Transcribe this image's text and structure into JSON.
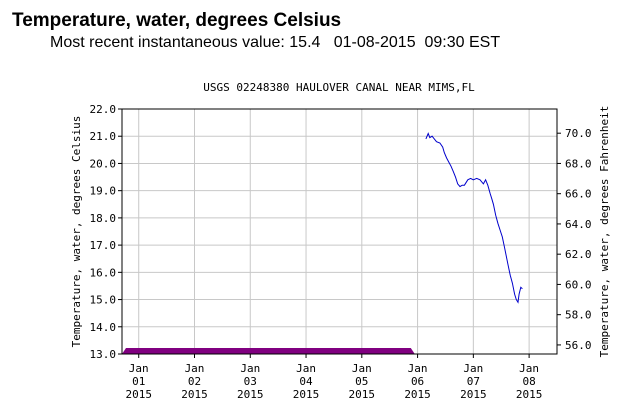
{
  "header": {
    "title": "Temperature, water, degrees Celsius",
    "recent_label": "Most recent instantaneous value:",
    "recent_value": "15.4",
    "recent_date": "01-08-2015",
    "recent_time": "09:30 EST"
  },
  "chart_data": {
    "type": "line",
    "title": "USGS 02248380 HAULOVER CANAL NEAR MIMS,FL",
    "ylabel": "Temperature, water, degrees Celsius",
    "y2label": "Temperature, water, degrees Fahrenheit",
    "ylim": [
      13.0,
      22.0
    ],
    "yticks": [
      "22.0",
      "21.0",
      "20.0",
      "19.0",
      "18.0",
      "17.0",
      "16.0",
      "15.0",
      "14.0",
      "13.0"
    ],
    "y2ticks": [
      "70.0",
      "68.0",
      "66.0",
      "64.0",
      "62.0",
      "60.0",
      "58.0",
      "56.0"
    ],
    "xlim": [
      0.7,
      8.5
    ],
    "xticks": [
      {
        "x": 1,
        "month": "Jan",
        "day": "01",
        "year": "2015"
      },
      {
        "x": 2,
        "month": "Jan",
        "day": "02",
        "year": "2015"
      },
      {
        "x": 3,
        "month": "Jan",
        "day": "03",
        "year": "2015"
      },
      {
        "x": 4,
        "month": "Jan",
        "day": "04",
        "year": "2015"
      },
      {
        "x": 5,
        "month": "Jan",
        "day": "05",
        "year": "2015"
      },
      {
        "x": 6,
        "month": "Jan",
        "day": "06",
        "year": "2015"
      },
      {
        "x": 7,
        "month": "Jan",
        "day": "07",
        "year": "2015"
      },
      {
        "x": 8,
        "month": "Jan",
        "day": "08",
        "year": "2015"
      }
    ],
    "grid": true,
    "series": [
      {
        "color": "#0000cc",
        "x": [
          6.15,
          6.19,
          6.22,
          6.26,
          6.3,
          6.34,
          6.4,
          6.45,
          6.48,
          6.52,
          6.56,
          6.6,
          6.64,
          6.68,
          6.72,
          6.76,
          6.8,
          6.84,
          6.9,
          6.95,
          7.0,
          7.06,
          7.12,
          7.18,
          7.22,
          7.26,
          7.3,
          7.33,
          7.36,
          7.4,
          7.44,
          7.48,
          7.52,
          7.56,
          7.62,
          7.66,
          7.7,
          7.74,
          7.77,
          7.8,
          7.82,
          7.85,
          7.88
        ],
        "y": [
          20.9,
          21.1,
          20.95,
          21.0,
          20.9,
          20.8,
          20.75,
          20.6,
          20.4,
          20.2,
          20.05,
          19.9,
          19.7,
          19.5,
          19.25,
          19.15,
          19.2,
          19.2,
          19.4,
          19.45,
          19.4,
          19.45,
          19.4,
          19.25,
          19.4,
          19.2,
          18.9,
          18.7,
          18.5,
          18.1,
          17.8,
          17.55,
          17.3,
          16.9,
          16.3,
          15.9,
          15.6,
          15.2,
          15.0,
          14.9,
          15.2,
          15.45,
          15.4
        ]
      }
    ],
    "bands": [
      {
        "color": "#800080",
        "x_start": 0.7,
        "x_end": 5.95,
        "y_bottom": 13.0,
        "y_top": 13.22
      }
    ]
  }
}
